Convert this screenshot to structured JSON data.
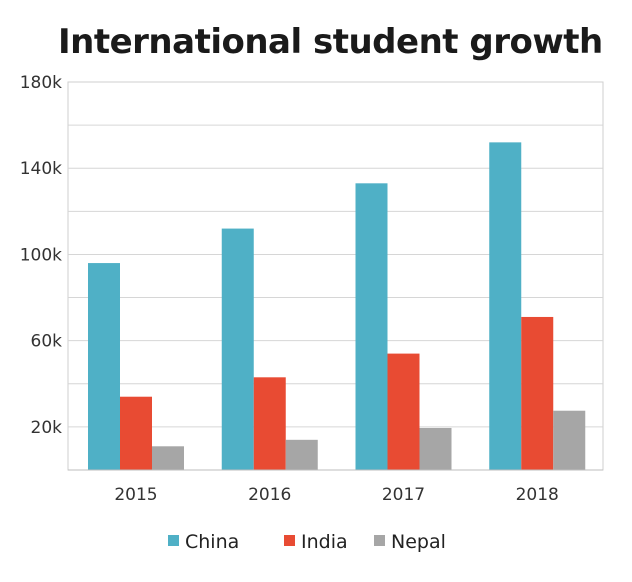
{
  "chart_data": {
    "type": "bar",
    "title": "International student growth",
    "categories": [
      "2015",
      "2016",
      "2017",
      "2018"
    ],
    "series": [
      {
        "name": "China",
        "color": "#4fb0c6",
        "values": [
          96000,
          112000,
          133000,
          152000
        ]
      },
      {
        "name": "India",
        "color": "#e84b33",
        "values": [
          34000,
          43000,
          54000,
          71000
        ]
      },
      {
        "name": "Nepal",
        "color": "#a6a6a6",
        "values": [
          11000,
          14000,
          19500,
          27500
        ]
      }
    ],
    "ylim": [
      0,
      180000
    ],
    "yticks": [
      20000,
      60000,
      100000,
      140000,
      180000
    ],
    "ytick_labels": [
      "20k",
      "60k",
      "100k",
      "140k",
      "180k"
    ],
    "xlabel": "",
    "ylabel": "",
    "grid": true,
    "legend_position": "bottom-center"
  }
}
